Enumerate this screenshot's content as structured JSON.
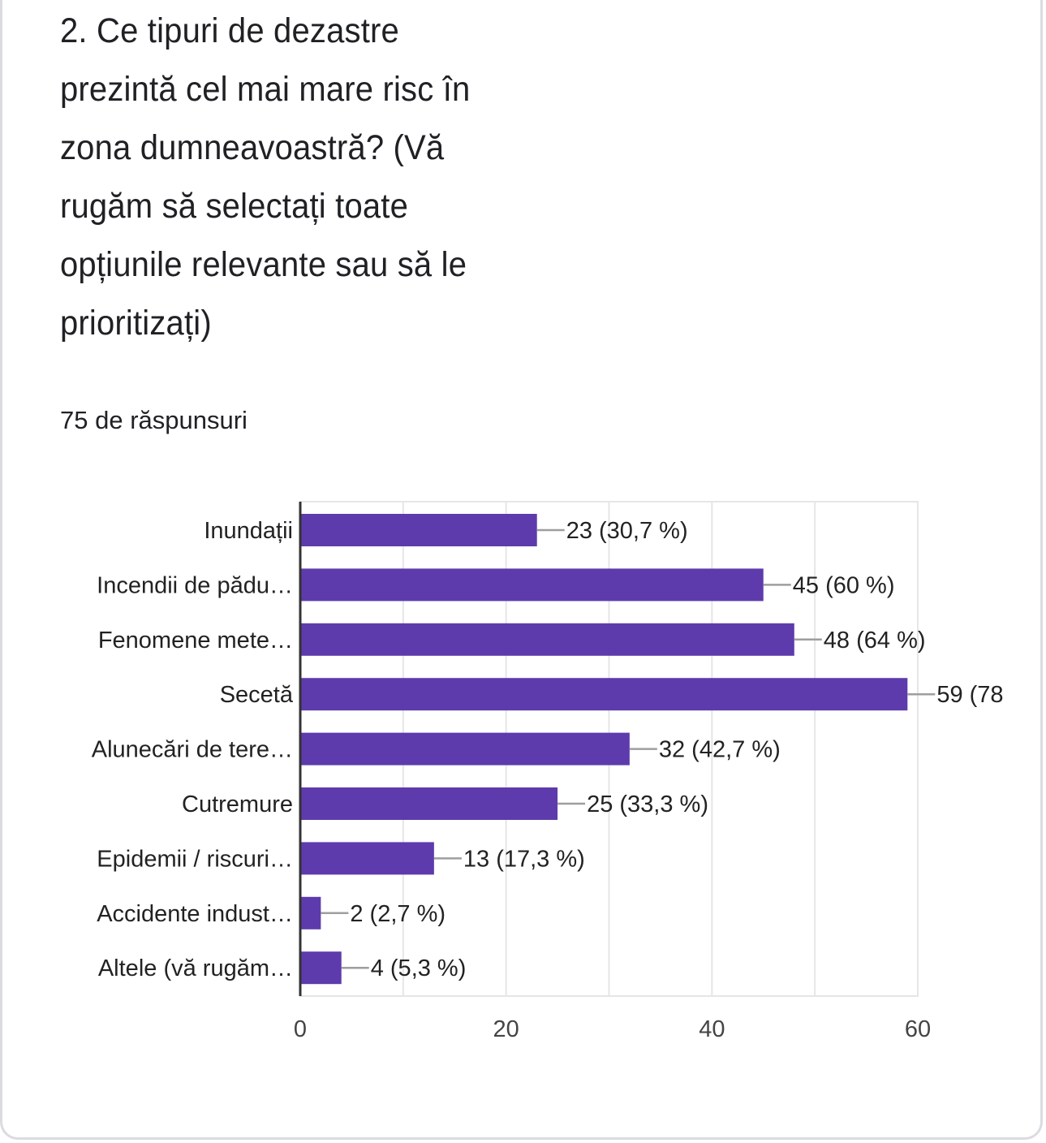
{
  "question": {
    "lines": [
      "2. Ce tipuri de dezastre",
      "prezintă cel mai mare risc în",
      "zona dumneavoastră? (Vă",
      "rugăm să selectați toate",
      "opțiunile relevante sau să le",
      "prioritizați)"
    ]
  },
  "response_count": "75 de răspunsuri",
  "colors": {
    "bar": "#5e3bac",
    "axis": "#333333",
    "grid": "#e6e6e6",
    "connector": "#9e9e9e"
  },
  "chart_data": {
    "type": "bar",
    "orientation": "horizontal",
    "title": "",
    "xlabel": "",
    "ylabel": "",
    "categories": [
      "Inundații",
      "Incendii de pădu…",
      "Fenomene mete…",
      "Secetă",
      "Alunecări de tere…",
      "Cutremure",
      "Epidemii / riscuri…",
      "Accidente indust…",
      "Altele (vă rugăm…"
    ],
    "values": [
      23,
      45,
      48,
      59,
      32,
      25,
      13,
      2,
      4
    ],
    "value_labels": [
      "23 (30,7 %)",
      "45 (60 %)",
      "48 (64 %)",
      "59 (78",
      "32 (42,7 %)",
      "25 (33,3 %)",
      "13 (17,3 %)",
      "2 (2,7 %)",
      "4 (5,3 %)"
    ],
    "xlim": [
      0,
      60
    ],
    "xticks": [
      0,
      20,
      40,
      60
    ],
    "minor_grid_step": 10,
    "grid": true,
    "legend": "none"
  }
}
